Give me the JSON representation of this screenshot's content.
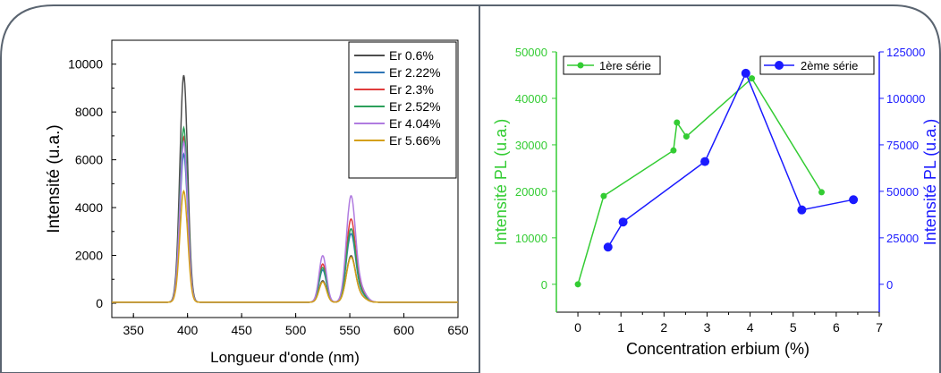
{
  "chart_data": [
    {
      "type": "line",
      "xlabel": "Longueur d'onde (nm)",
      "ylabel": "Intensité (u.a.)",
      "xlim": [
        330,
        650
      ],
      "ylim": [
        -600,
        11000
      ],
      "xticks": [
        350,
        400,
        450,
        500,
        550,
        600,
        650
      ],
      "yticks": [
        0,
        2000,
        4000,
        6000,
        8000,
        10000
      ],
      "grid": false,
      "legend_position": "top-right",
      "series": [
        {
          "name": "Er 0.6%",
          "color": "#4d4d4d",
          "peak_396": 9500,
          "peak_525": 900,
          "peak_551": 1900
        },
        {
          "name": "Er 2.22%",
          "color": "#2e75b6",
          "peak_396": 6200,
          "peak_525": 1350,
          "peak_551": 2800
        },
        {
          "name": "Er 2.3%",
          "color": "#e03c3c",
          "peak_396": 6900,
          "peak_525": 1600,
          "peak_551": 3400
        },
        {
          "name": "Er 2.52%",
          "color": "#2ca05a",
          "peak_396": 7300,
          "peak_525": 1450,
          "peak_551": 3000
        },
        {
          "name": "Er 4.04%",
          "color": "#b07be0",
          "peak_396": 6700,
          "peak_525": 1950,
          "peak_551": 4350
        },
        {
          "name": "Er 5.66%",
          "color": "#d4a017",
          "peak_396": 4650,
          "peak_525": 850,
          "peak_551": 1850
        }
      ]
    },
    {
      "type": "line",
      "xlabel": "Concentration erbium (%)",
      "ylabel_left": "Intensité PL (u.a.)",
      "ylabel_right": "Intensité PL (u.a.)",
      "xlim": [
        -0.5,
        7
      ],
      "ylim_left": [
        -6000,
        50000
      ],
      "ylim_right": [
        -15000,
        125000
      ],
      "xticks": [
        0,
        1,
        2,
        3,
        4,
        5,
        6,
        7
      ],
      "yticks_left": [
        0,
        10000,
        20000,
        30000,
        40000,
        50000
      ],
      "yticks_right": [
        0,
        25000,
        50000,
        75000,
        100000,
        125000
      ],
      "grid": false,
      "series": [
        {
          "name": "1ère série",
          "color": "#33cc33",
          "axis": "left",
          "x": [
            0,
            0.6,
            2.22,
            2.3,
            2.52,
            4.04,
            5.66
          ],
          "y": [
            0,
            19000,
            28800,
            34800,
            31800,
            44300,
            19800
          ]
        },
        {
          "name": "2ème série",
          "color": "#1a1aff",
          "axis": "right",
          "x": [
            0.7,
            1.05,
            2.95,
            3.9,
            5.2,
            6.4
          ],
          "y": [
            20000,
            33500,
            66000,
            113500,
            40000,
            45500
          ]
        }
      ]
    }
  ]
}
